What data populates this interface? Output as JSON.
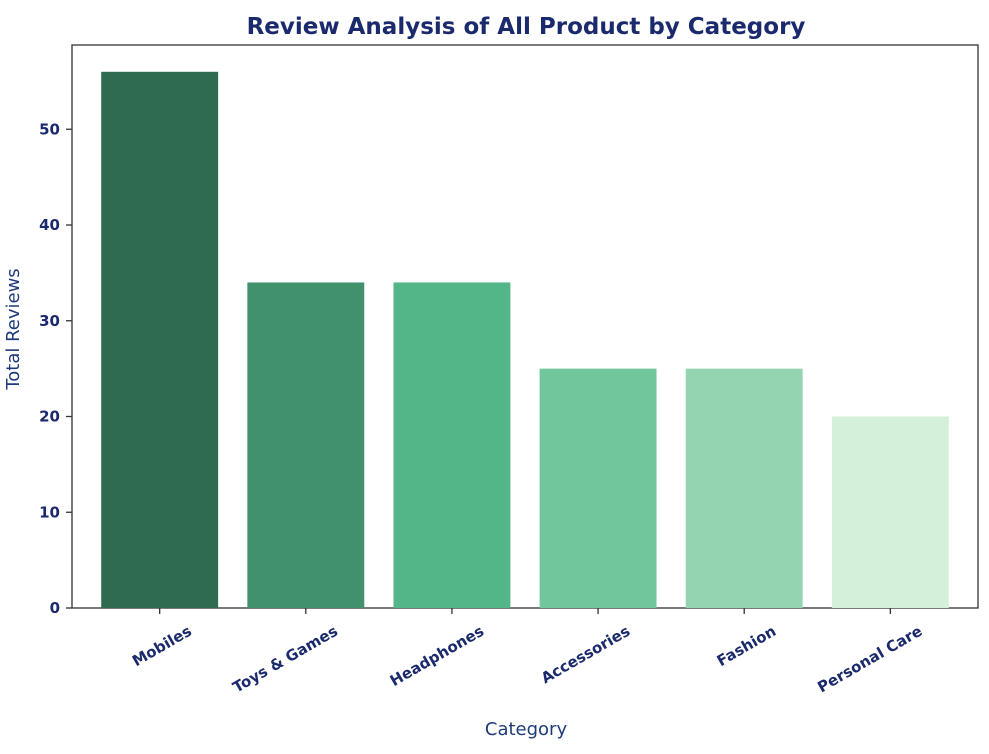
{
  "chart_data": {
    "type": "bar",
    "title": "Review Analysis of All Product by Category",
    "xlabel": "Category",
    "ylabel": "Total Reviews",
    "categories": [
      "Mobiles",
      "Toys & Games",
      "Headphones",
      "Accessories",
      "Fashion",
      "Personal Care"
    ],
    "values": [
      56,
      34,
      34,
      25,
      25,
      20
    ],
    "colors": [
      "#2e6b50",
      "#41916c",
      "#52b688",
      "#72c69c",
      "#95d4b0",
      "#d5f0da"
    ],
    "ylim": [
      0,
      58.8
    ],
    "yticks": [
      0,
      10,
      20,
      30,
      40,
      50
    ],
    "grid": false,
    "legend": "none",
    "text_color": "#1a2a6c",
    "axis_color": "#333333"
  }
}
